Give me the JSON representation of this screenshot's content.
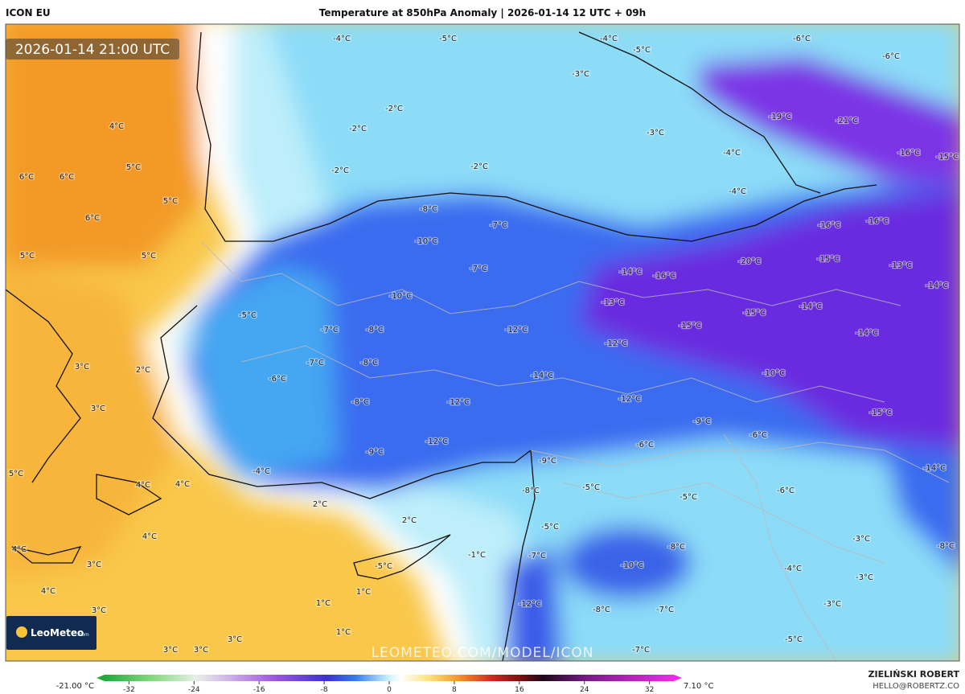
{
  "header": {
    "model": "ICON EU",
    "title": "Temperature at 850hPa Anomaly | 2026-01-14 12 UTC + 09h"
  },
  "timestamp": "2026-01-14 21:00 UTC",
  "map": {
    "labels": [
      "-4°C",
      "-5°C",
      "-4°C",
      "-6°C",
      "-5°C",
      "-6°C",
      "-3°C",
      "-2°C",
      "-2°C",
      "-3°C",
      "-19°C",
      "-21°C",
      "-4°C",
      "-16°C",
      "-15°C",
      "-2°C",
      "-2°C",
      "-4°C",
      "-8°C",
      "-7°C",
      "-16°C",
      "-16°C",
      "-10°C",
      "-20°C",
      "-15°C",
      "-13°C",
      "-7°C",
      "-14°C",
      "-16°C",
      "-14°C",
      "-10°C",
      "-13°C",
      "-15°C",
      "-14°C",
      "-5°C",
      "-7°C",
      "-8°C",
      "-12°C",
      "-15°C",
      "-14°C",
      "-12°C",
      "-7°C",
      "-8°C",
      "-10°C",
      "-14°C",
      "-6°C",
      "-8°C",
      "-12°C",
      "-12°C",
      "-15°C",
      "-9°C",
      "-6°C",
      "-12°C",
      "-6°C",
      "-9°C",
      "-9°C",
      "-4°C",
      "-14°C",
      "-8°C",
      "-5°C",
      "-6°C",
      "-5°C",
      "-5°C",
      "-8°C",
      "-7°C",
      "-1°C",
      "-10°C",
      "-4°C",
      "-3°C",
      "-8°C",
      "-3°C",
      "-12°C",
      "-8°C",
      "-7°C",
      "-3°C",
      "-5°C",
      "-7°C",
      "4°C",
      "5°C",
      "6°C",
      "6°C",
      "5°C",
      "6°C",
      "5°C",
      "5°C",
      "3°C",
      "2°C",
      "3°C",
      "5°C",
      "4°C",
      "4°C",
      "2°C",
      "2°C",
      "4°C",
      "4°C",
      "3°C",
      "4°C",
      "1°C",
      "1°C",
      "3°C",
      "1°C",
      "3°C",
      "3°C",
      "3°C",
      "-5°C"
    ]
  },
  "watermark": "LEOMETEO.COM/MODEL/ICON",
  "logo": {
    "name": "LeoMeteo",
    "suffix": ".com"
  },
  "colorbar": {
    "min_label": "-21.00 °C",
    "max_label": "7.10 °C",
    "lim": [
      -35,
      35
    ],
    "ticks": [
      -32,
      -24,
      -16,
      -8,
      0,
      8,
      16,
      24,
      32
    ]
  },
  "footer": {
    "author": "ZIELIŃSKI ROBERT",
    "email": "HELLO@ROBERTZ.CO"
  }
}
